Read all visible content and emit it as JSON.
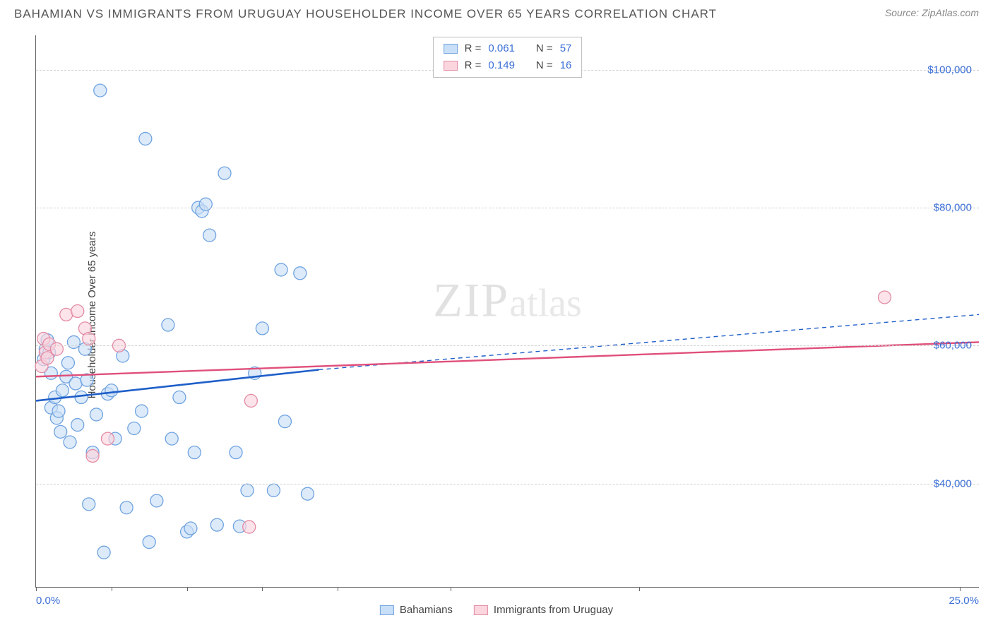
{
  "title": "BAHAMIAN VS IMMIGRANTS FROM URUGUAY HOUSEHOLDER INCOME OVER 65 YEARS CORRELATION CHART",
  "source": "Source: ZipAtlas.com",
  "ylabel": "Householder Income Over 65 years",
  "watermark_a": "ZIP",
  "watermark_b": "atlas",
  "chart": {
    "type": "scatter",
    "xlim": [
      0,
      25
    ],
    "ylim": [
      25000,
      105000
    ],
    "yticks": [
      40000,
      60000,
      80000,
      100000
    ],
    "ytick_labels": [
      "$40,000",
      "$60,000",
      "$80,000",
      "$100,000"
    ],
    "xtick_positions": [
      0,
      2,
      4,
      6,
      8,
      11,
      16,
      24.5
    ],
    "xaxis_left_label": "0.0%",
    "xaxis_right_label": "25.0%",
    "grid_color": "#d0d0d0",
    "background_color": "#ffffff",
    "marker_radius": 9,
    "marker_stroke_width": 1.3,
    "series": [
      {
        "name": "Bahamians",
        "fill_color": "#c9dff7",
        "stroke_color": "#6fa3e0",
        "fill_opacity": 0.65,
        "R": "0.061",
        "N": "57",
        "trend": {
          "x1": 0,
          "y1": 52000,
          "x2": 7.5,
          "y2": 56500,
          "x2_ext": 25,
          "y2_ext": 64500,
          "color": "#1f5fc9",
          "width": 2.6
        },
        "points": [
          [
            0.2,
            58000
          ],
          [
            0.25,
            59500
          ],
          [
            0.3,
            60800
          ],
          [
            0.35,
            59000
          ],
          [
            0.4,
            56000
          ],
          [
            0.4,
            51000
          ],
          [
            0.5,
            52500
          ],
          [
            0.55,
            49500
          ],
          [
            0.6,
            50500
          ],
          [
            0.65,
            47500
          ],
          [
            0.7,
            53500
          ],
          [
            0.8,
            55500
          ],
          [
            0.85,
            57500
          ],
          [
            0.9,
            46000
          ],
          [
            1.0,
            60500
          ],
          [
            1.05,
            54500
          ],
          [
            1.1,
            48500
          ],
          [
            1.2,
            52500
          ],
          [
            1.3,
            59500
          ],
          [
            1.35,
            55000
          ],
          [
            1.4,
            37000
          ],
          [
            1.5,
            44500
          ],
          [
            1.6,
            50000
          ],
          [
            1.7,
            97000
          ],
          [
            1.8,
            30000
          ],
          [
            1.9,
            53000
          ],
          [
            2.0,
            53500
          ],
          [
            2.1,
            46500
          ],
          [
            2.3,
            58500
          ],
          [
            2.4,
            36500
          ],
          [
            2.6,
            48000
          ],
          [
            2.8,
            50500
          ],
          [
            2.9,
            90000
          ],
          [
            3.0,
            31500
          ],
          [
            3.2,
            37500
          ],
          [
            3.5,
            63000
          ],
          [
            3.6,
            46500
          ],
          [
            3.8,
            52500
          ],
          [
            4.0,
            33000
          ],
          [
            4.1,
            33500
          ],
          [
            4.2,
            44500
          ],
          [
            4.3,
            80000
          ],
          [
            4.4,
            79500
          ],
          [
            4.5,
            80500
          ],
          [
            4.6,
            76000
          ],
          [
            4.8,
            34000
          ],
          [
            5.0,
            85000
          ],
          [
            5.3,
            44500
          ],
          [
            5.4,
            33800
          ],
          [
            5.6,
            39000
          ],
          [
            5.8,
            56000
          ],
          [
            6.0,
            62500
          ],
          [
            6.3,
            39000
          ],
          [
            6.5,
            71000
          ],
          [
            6.6,
            49000
          ],
          [
            7.0,
            70500
          ],
          [
            7.2,
            38500
          ]
        ]
      },
      {
        "name": "Immigrants from Uruguay",
        "fill_color": "#fbd6df",
        "stroke_color": "#e48ba4",
        "fill_opacity": 0.65,
        "R": "0.149",
        "N": "16",
        "trend": {
          "x1": 0,
          "y1": 55500,
          "x2": 25,
          "y2": 60500,
          "color": "#e04f7a",
          "width": 2.4
        },
        "points": [
          [
            0.15,
            57000
          ],
          [
            0.2,
            61000
          ],
          [
            0.25,
            59000
          ],
          [
            0.3,
            58200
          ],
          [
            0.35,
            60200
          ],
          [
            0.55,
            59500
          ],
          [
            0.8,
            64500
          ],
          [
            1.1,
            65000
          ],
          [
            1.3,
            62500
          ],
          [
            1.4,
            61000
          ],
          [
            1.5,
            44000
          ],
          [
            1.9,
            46500
          ],
          [
            2.2,
            60000
          ],
          [
            5.65,
            33700
          ],
          [
            5.7,
            52000
          ],
          [
            22.5,
            67000
          ]
        ]
      }
    ]
  },
  "stats_legend": {
    "rows": [
      {
        "swatch_fill": "#c9dff7",
        "swatch_border": "#6fa3e0",
        "r_label": "R =",
        "r_val": "0.061",
        "n_label": "N =",
        "n_val": "57"
      },
      {
        "swatch_fill": "#fbd6df",
        "swatch_border": "#e48ba4",
        "r_label": "R =",
        "r_val": "0.149",
        "n_label": "N =",
        "n_val": "16"
      }
    ]
  },
  "bottom_legend": {
    "items": [
      {
        "swatch_fill": "#c9dff7",
        "swatch_border": "#6fa3e0",
        "label": "Bahamians"
      },
      {
        "swatch_fill": "#fbd6df",
        "swatch_border": "#e48ba4",
        "label": "Immigrants from Uruguay"
      }
    ]
  }
}
